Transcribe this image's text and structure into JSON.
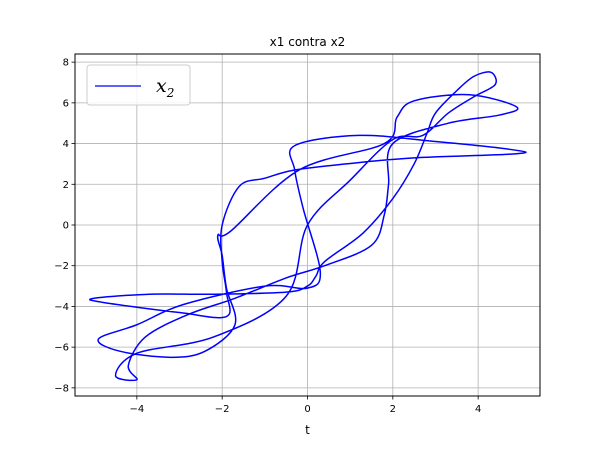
{
  "chart_data": {
    "type": "line",
    "title": "x1 contra x2",
    "xlabel": "t",
    "ylabel": "",
    "xlim": [
      -5.45,
      5.45
    ],
    "ylim": [
      -8.4,
      8.4
    ],
    "xticks": [
      -4,
      -2,
      0,
      2,
      4
    ],
    "yticks": [
      -8,
      -6,
      -4,
      -2,
      0,
      2,
      4,
      6,
      8
    ],
    "xtick_labels": [
      "−4",
      "−2",
      "0",
      "2",
      "4"
    ],
    "ytick_labels": [
      "−8",
      "−6",
      "−4",
      "−2",
      "0",
      "2",
      "4",
      "6",
      "8"
    ],
    "grid": true,
    "legend_position": "top-left",
    "series": [
      {
        "name": "x2",
        "color": "#0000ff",
        "curve_type": "parametric_closed",
        "approx_points": [
          [
            0,
            0
          ],
          [
            1,
            2.2
          ],
          [
            2,
            4.2
          ],
          [
            2.7,
            4.4
          ],
          [
            3.3,
            5.5
          ],
          [
            3.9,
            6.3
          ],
          [
            4.4,
            6.9
          ],
          [
            4.3,
            7.5
          ],
          [
            3.9,
            7.3
          ],
          [
            3.5,
            6.6
          ],
          [
            3.0,
            5.5
          ],
          [
            2.8,
            4.5
          ],
          [
            2.5,
            3.0
          ],
          [
            2.0,
            1.3
          ],
          [
            1.3,
            -0.4
          ],
          [
            0.4,
            -1.8
          ],
          [
            0.2,
            -2.5
          ],
          [
            0.0,
            -3.0
          ],
          [
            -0.5,
            -3.3
          ],
          [
            -2.2,
            -3.4
          ],
          [
            -3.7,
            -3.4
          ],
          [
            -5.0,
            -3.6
          ],
          [
            -4.8,
            -3.8
          ],
          [
            -3.0,
            -4.3
          ],
          [
            -1.9,
            -4.5
          ],
          [
            -1.9,
            -3.3
          ],
          [
            -2.0,
            -1.8
          ],
          [
            -2.0,
            0.0
          ],
          [
            -1.6,
            1.9
          ],
          [
            -1.0,
            2.3
          ],
          [
            -0.3,
            2.7
          ],
          [
            0.9,
            3.0
          ],
          [
            2.5,
            3.3
          ],
          [
            4.9,
            3.5
          ],
          [
            4.8,
            3.7
          ],
          [
            3.0,
            4.1
          ],
          [
            1.2,
            4.4
          ],
          [
            -0.3,
            3.9
          ],
          [
            -0.3,
            2.7
          ],
          [
            -0.1,
            0.8
          ],
          [
            0.3,
            -2.3
          ],
          [
            0.0,
            -3.1
          ],
          [
            -1.0,
            -3.0
          ],
          [
            -2.9,
            -3.9
          ],
          [
            -4.0,
            -4.9
          ],
          [
            -4.9,
            -5.6
          ],
          [
            -4.4,
            -6.2
          ],
          [
            -3.2,
            -6.5
          ],
          [
            -2.4,
            -6.2
          ],
          [
            -1.7,
            -4.9
          ],
          [
            -1.9,
            -3.1
          ],
          [
            -2.0,
            -1.5
          ],
          [
            -2.1,
            -0.5
          ],
          [
            -1.8,
            -0.3
          ],
          [
            -0.2,
            2.7
          ],
          [
            1.8,
            4.0
          ],
          [
            2.1,
            5.3
          ],
          [
            2.5,
            6.1
          ],
          [
            3.8,
            6.4
          ],
          [
            4.9,
            5.8
          ],
          [
            4.5,
            5.4
          ],
          [
            3.3,
            5.0
          ],
          [
            2.0,
            4.0
          ],
          [
            1.9,
            2.0
          ],
          [
            1.8,
            0.5
          ],
          [
            1.5,
            -1.0
          ],
          [
            0.4,
            -2.0
          ],
          [
            -0.5,
            -2.6
          ],
          [
            -1.7,
            -3.6
          ],
          [
            -2.8,
            -4.4
          ],
          [
            -3.8,
            -5.5
          ],
          [
            -4.2,
            -6.9
          ],
          [
            -4.0,
            -7.6
          ],
          [
            -4.5,
            -7.4
          ],
          [
            -4.0,
            -6.3
          ],
          [
            -2.2,
            -5.5
          ],
          [
            -0.5,
            -3.5
          ],
          [
            0,
            0
          ]
        ]
      }
    ]
  }
}
